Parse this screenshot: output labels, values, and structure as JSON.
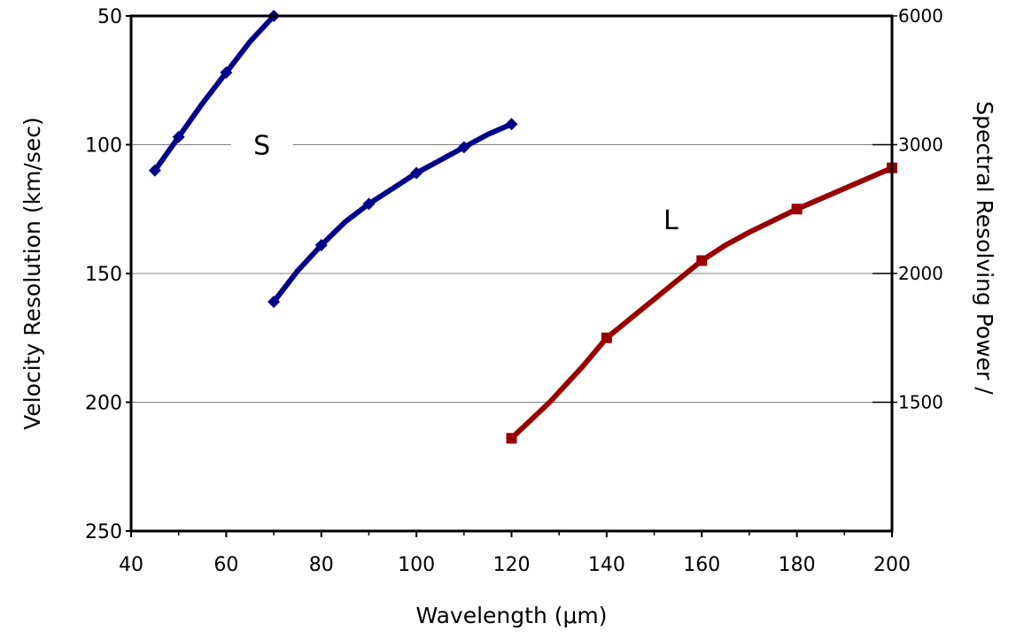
{
  "chart_data": {
    "type": "line",
    "title": "",
    "xlabel": "Wavelength (μm)",
    "ylabel": "Velocity Resolution (km/sec)",
    "y2label": "Spectral Resolving Power   /",
    "xlim": [
      40,
      200
    ],
    "ylim": [
      50,
      250
    ],
    "y_inverted": true,
    "x_ticks": [
      40,
      60,
      80,
      100,
      120,
      140,
      160,
      180,
      200
    ],
    "x_tick_labels": [
      "40",
      "60",
      "80",
      "100",
      "120",
      "140",
      "160",
      "180",
      "200"
    ],
    "y_ticks": [
      50,
      100,
      150,
      200,
      250
    ],
    "y_tick_labels": [
      "50",
      "100",
      "150",
      "200",
      "250"
    ],
    "y2_ticks": [
      {
        "label": "6000",
        "at_velocity": 50
      },
      {
        "label": "3000",
        "at_velocity": 100
      },
      {
        "label": "2000",
        "at_velocity": 150
      },
      {
        "label": "1500",
        "at_velocity": 200
      }
    ],
    "grid": true,
    "series": [
      {
        "name": "S",
        "color": "#00008b",
        "marker": "diamond",
        "segments": [
          {
            "x": [
              45,
              50,
              55,
              60,
              65,
              70
            ],
            "y": [
              110,
              97,
              84,
              72,
              60,
              50
            ]
          },
          {
            "x": [
              70,
              75,
              80,
              85,
              90,
              95,
              100,
              105,
              110,
              115,
              120
            ],
            "y": [
              161,
              149,
              139,
              130,
              123,
              117,
              111,
              106,
              101,
              96,
              92
            ]
          }
        ],
        "marker_x": [
          45,
          50,
          60,
          70,
          70,
          80,
          90,
          100,
          110,
          120
        ],
        "marker_y": [
          110,
          97,
          72,
          50,
          161,
          139,
          123,
          111,
          101,
          92
        ]
      },
      {
        "name": "L",
        "color": "#990000",
        "marker": "square",
        "segments": [
          {
            "x": [
              120,
              128,
              135,
              140,
              150,
              160,
              165,
              170,
              180,
              190,
              200
            ],
            "y": [
              214,
              200,
              186,
              175,
              160,
              145,
              139,
              134,
              125,
              117,
              109
            ]
          }
        ],
        "marker_x": [
          120,
          140,
          160,
          180,
          200
        ],
        "marker_y": [
          214,
          175,
          145,
          125,
          109
        ]
      }
    ]
  }
}
